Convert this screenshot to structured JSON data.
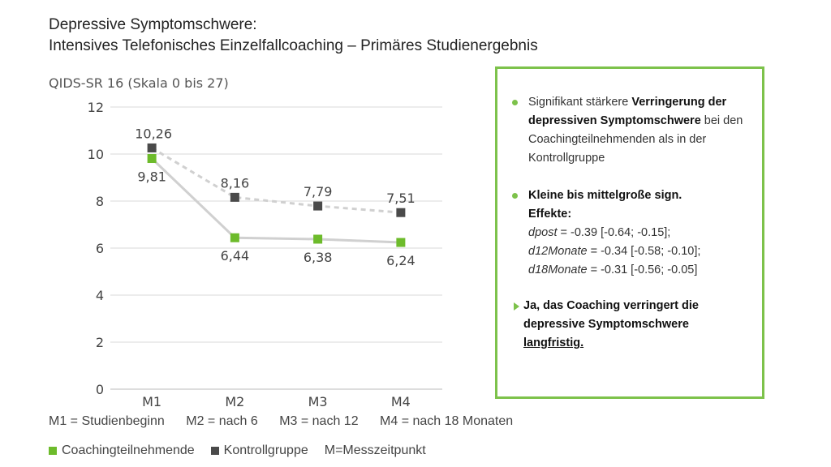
{
  "title_line1": "Depressive Symptomschwere:",
  "title_line2": "Intensives Telefonisches Einzelfallcoaching – Primäres Studienergebnis",
  "chart_data": {
    "type": "line",
    "ylabel": "QIDS-SR 16 (Skala 0 bis 27)",
    "ylim": [
      0,
      12
    ],
    "yticks": [
      0,
      2,
      4,
      6,
      8,
      10,
      12
    ],
    "categories": [
      "M1",
      "M2",
      "M3",
      "M4"
    ],
    "grid": true,
    "series": [
      {
        "name": "Coachingteilnehmende",
        "values": [
          9.81,
          6.44,
          6.38,
          6.24
        ],
        "labels": [
          "9,81",
          "6,44",
          "6,38",
          "6,24"
        ],
        "marker_color": "#6dbb2b",
        "line_color": "#d0d0d0",
        "dashed": false
      },
      {
        "name": "Kontrollgruppe",
        "values": [
          10.26,
          8.16,
          7.79,
          7.51
        ],
        "labels": [
          "10,26",
          "8,16",
          "7,79",
          "7,51"
        ],
        "marker_color": "#4a4a4a",
        "line_color": "#d0d0d0",
        "dashed": true
      }
    ]
  },
  "measure_legend": [
    "M1 = Studienbeginn",
    "M2 = nach 6",
    "M3 = nach 12",
    "M4 = nach 18 Monaten"
  ],
  "series_legend": {
    "coaching": "Coachingteilnehmende",
    "control": "Kontrollgruppe",
    "note": "M=Messzeitpunkt"
  },
  "panel": {
    "b1_pre": "Signifikant stärkere ",
    "b1_bold": "Verringerung der depressiven Symptomschwere",
    "b1_post": " bei den Coachingteilnehmenden als in der Kontrollgruppe",
    "b2_bold": "Kleine bis mittelgroße sign. Effekte:",
    "b2_l1_key": "dpost",
    "b2_l1_val": " = -0.39 [-0.64; -0.15];",
    "b2_l2_key": "d12Monate",
    "b2_l2_val": " = -0.34 [-0.58; -0.10];",
    "b2_l3_key": "d18Monate",
    "b2_l3_val": " = -0.31 [-0.56; -0.05]",
    "b3_bold": "Ja, das Coaching verringert die depressive Symptomschwere ",
    "b3_ul": "langfristig."
  },
  "colors": {
    "accent": "#7dc24b",
    "coaching": "#6dbb2b",
    "control": "#4a4a4a",
    "line": "#d0d0d0"
  }
}
